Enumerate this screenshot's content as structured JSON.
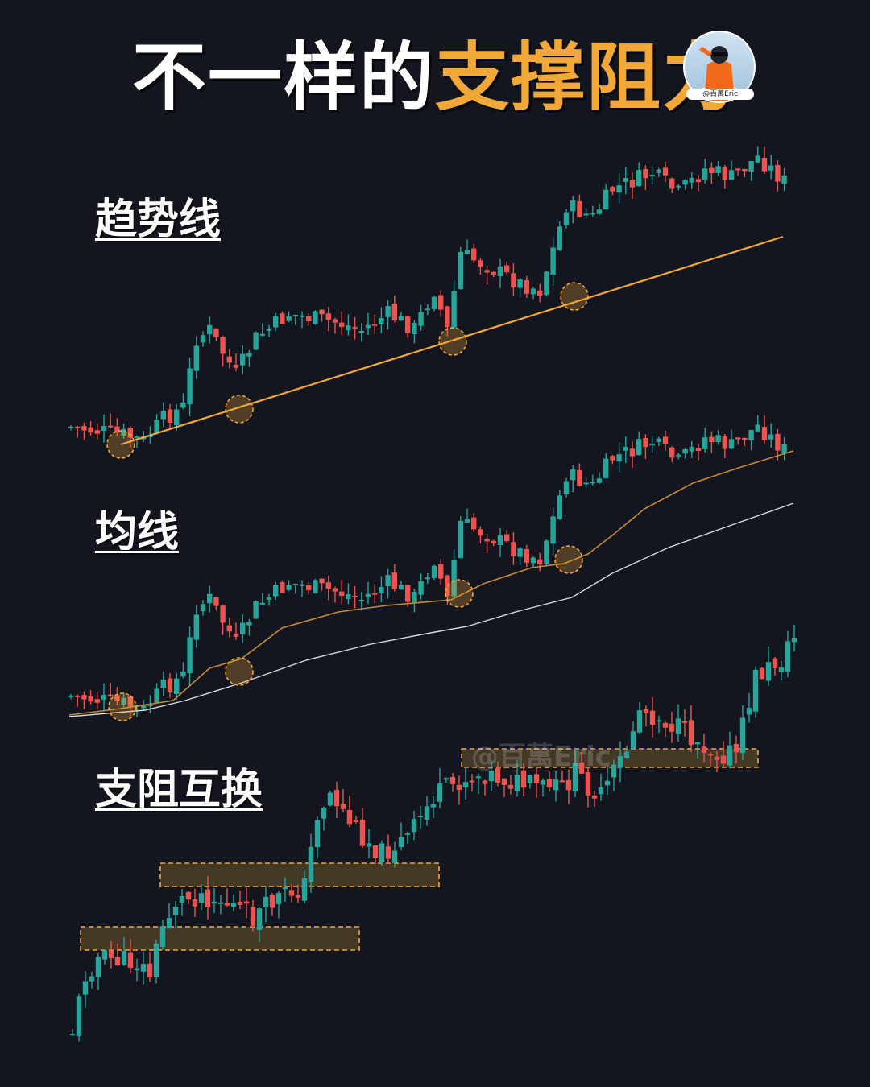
{
  "title": {
    "part1": "不一样的",
    "part2": "支撑阻力"
  },
  "avatar": {
    "handle": "@百萬Eric",
    "badge_icon": "youtube-bilibili-icon"
  },
  "sections": [
    {
      "label": "趋势线"
    },
    {
      "label": "均线"
    },
    {
      "label": "支阻互换"
    }
  ],
  "watermark": "@百萬Eric",
  "colors": {
    "bull": "#26a69a",
    "bear": "#ef5350",
    "gold": "#f2a838",
    "background": "#13151f"
  },
  "chart_data": [
    {
      "type": "candlestick",
      "title": "趋势线",
      "series_shape": "uptrend with three touches of a rising trendline",
      "annotations": [
        "rising trendline",
        "3 touch points circled",
        "starting point circled"
      ]
    },
    {
      "type": "candlestick",
      "title": "均线",
      "series_shape": "same uptrend with two moving averages (fast gold, slow white)",
      "annotations": [
        "4 bounces off the fast moving average circled"
      ]
    },
    {
      "type": "candlestick",
      "title": "支阻互换",
      "series_shape": "staircase uptrend where former resistance becomes support",
      "annotations": [
        "3 dashed support/resistance zones"
      ]
    }
  ]
}
